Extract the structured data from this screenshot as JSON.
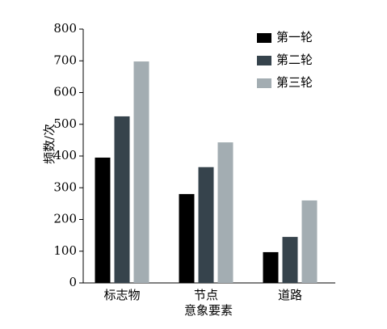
{
  "chart_data": {
    "type": "bar",
    "x_label": "意象要素",
    "y_label": "频数/次",
    "categories": [
      "标志物",
      "节点",
      "道路"
    ],
    "series": [
      {
        "name": "第一轮",
        "color": "#000000",
        "values": [
          395,
          280,
          97
        ]
      },
      {
        "name": "第二轮",
        "color": "#36434c",
        "values": [
          525,
          365,
          145
        ]
      },
      {
        "name": "第三轮",
        "color": "#a3adb2",
        "values": [
          698,
          443,
          260
        ]
      }
    ],
    "ylim": [
      0,
      800
    ],
    "yticks": [
      0,
      100,
      200,
      300,
      400,
      500,
      600,
      700,
      800
    ],
    "legend": "upper right"
  }
}
